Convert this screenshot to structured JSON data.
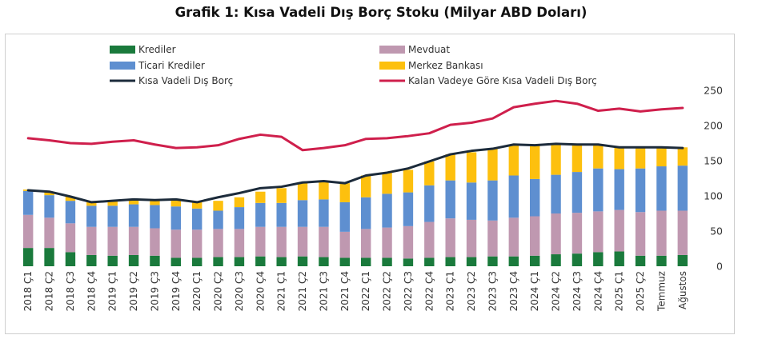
{
  "chart_data": {
    "type": "bar",
    "title": "Grafik 1: Kısa Vadeli Dış Borç Stoku (Milyar ABD Doları)",
    "stacked": true,
    "ylim": [
      0,
      250
    ],
    "yticks": [
      0,
      50,
      100,
      150,
      200,
      250
    ],
    "y_axis_side": "right",
    "grid": false,
    "legend_position": "top-left",
    "categories": [
      "2018 Ç1",
      "2018 Ç2",
      "2018 Ç3",
      "2018 Ç4",
      "2019 Ç1",
      "2019 Ç2",
      "2019 Ç3",
      "2019 Ç4",
      "2020 Ç1",
      "2020 Ç2",
      "2020 Ç3",
      "2020 Ç4",
      "2021 Ç1",
      "2021 Ç2",
      "2021 Ç3",
      "2021 Ç4",
      "2022 Ç1",
      "2022 Ç2",
      "2022 Ç3",
      "2022 Ç4",
      "2023 Ç1",
      "2023 Ç2",
      "2023 Ç3",
      "2023 Ç4",
      "2024 Ç1",
      "2024 Ç2",
      "2024 Ç3",
      "2024 Ç4",
      "2025 Ç1",
      "2025 Ç2",
      "Temmuz",
      "Ağustos"
    ],
    "series": [
      {
        "name": "Krediler",
        "kind": "bar",
        "color": "#1a7a3c",
        "values": [
          26,
          26,
          20,
          16,
          15,
          16,
          15,
          12,
          12,
          13,
          13,
          14,
          13,
          14,
          13,
          12,
          12,
          12,
          11,
          12,
          13,
          13,
          14,
          14,
          15,
          17,
          18,
          20,
          21,
          15,
          15,
          16
        ]
      },
      {
        "name": "Mevduat",
        "kind": "bar",
        "color": "#bf98b0",
        "values": [
          47,
          43,
          41,
          40,
          41,
          40,
          39,
          40,
          40,
          40,
          40,
          42,
          43,
          42,
          43,
          37,
          41,
          43,
          46,
          51,
          55,
          53,
          51,
          55,
          56,
          58,
          58,
          58,
          59,
          62,
          64,
          63
        ]
      },
      {
        "name": "Ticari Krediler",
        "kind": "bar",
        "color": "#5e8fd0",
        "values": [
          34,
          32,
          32,
          30,
          30,
          32,
          33,
          33,
          30,
          26,
          31,
          34,
          34,
          38,
          39,
          42,
          45,
          48,
          48,
          52,
          54,
          53,
          57,
          60,
          53,
          55,
          58,
          61,
          58,
          62,
          63,
          64
        ]
      },
      {
        "name": "Merkez Bankası",
        "kind": "bar",
        "color": "#fdc00e",
        "values": [
          2,
          5,
          6,
          6,
          7,
          7,
          7,
          10,
          9,
          14,
          14,
          16,
          21,
          25,
          26,
          27,
          31,
          30,
          32,
          34,
          37,
          43,
          45,
          44,
          48,
          44,
          39,
          34,
          31,
          30,
          27,
          26
        ]
      },
      {
        "name": "Kısa Vadeli Dış Borç",
        "kind": "line",
        "color": "#1c2b3b",
        "values": [
          108,
          106,
          99,
          91,
          93,
          95,
          94,
          95,
          91,
          98,
          104,
          111,
          113,
          119,
          121,
          118,
          129,
          133,
          139,
          149,
          159,
          164,
          167,
          173,
          172,
          174,
          173,
          173,
          169,
          169,
          169,
          168
        ]
      },
      {
        "name": "Kalan Vadeye Göre Kısa Vadeli Dış Borç",
        "kind": "line",
        "color": "#cf1f4c",
        "values": [
          182,
          179,
          175,
          174,
          177,
          179,
          173,
          168,
          169,
          172,
          181,
          187,
          184,
          165,
          168,
          172,
          181,
          182,
          185,
          189,
          201,
          204,
          210,
          226,
          231,
          235,
          231,
          221,
          224,
          220,
          223,
          225
        ]
      }
    ]
  }
}
